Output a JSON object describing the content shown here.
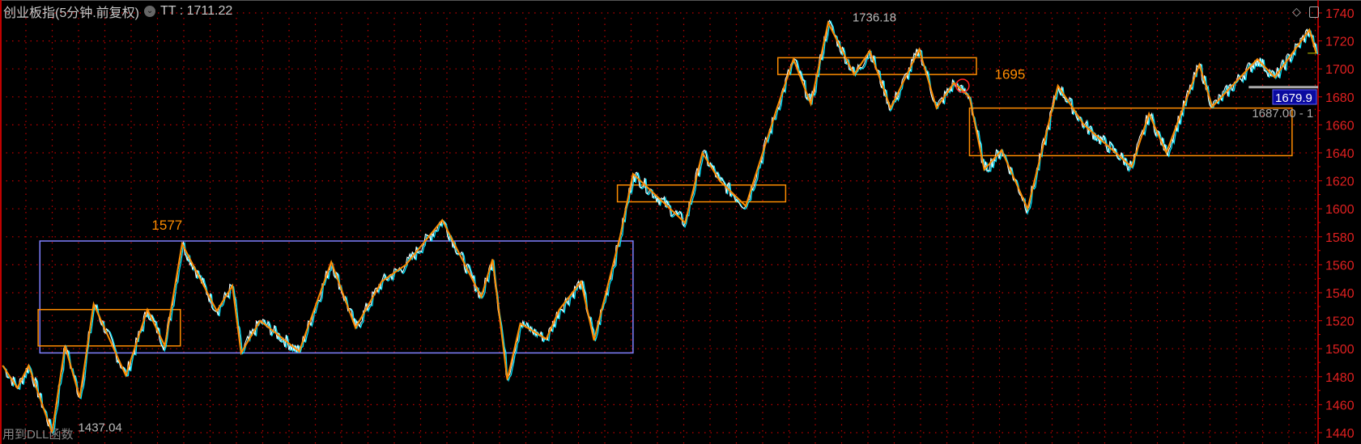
{
  "header": {
    "title": "创业板指(5分钟.前复权)",
    "indicator_label": "TT : 1711.22",
    "dropdown_icon": "chevron-down-circle-icon",
    "toolbar_icons": [
      "diamond-icon",
      "panel-toggle-icon"
    ]
  },
  "footer": {
    "note": "用到DLL函数"
  },
  "colors": {
    "background": "#000000",
    "axis": "#e00000",
    "grid": "#c00000",
    "zigzag": "#ff8c00",
    "price_line": "#ffffff",
    "price_shadow": "#00e5ff",
    "range_box": "#8080ff",
    "current_price_bg": "#0a0aa0"
  },
  "chart_data": {
    "type": "line",
    "title": "",
    "xlabel": "",
    "ylabel": "",
    "ylim": [
      1440,
      1740
    ],
    "xlim": [
      0,
      1520
    ],
    "grid": true,
    "y_ticks": [
      1440,
      1460,
      1480,
      1500,
      1520,
      1540,
      1560,
      1580,
      1600,
      1620,
      1640,
      1660,
      1680,
      1700,
      1720,
      1740
    ],
    "zigzag": {
      "x": [
        3,
        20,
        33,
        60,
        75,
        92,
        108,
        145,
        170,
        190,
        210,
        250,
        268,
        278,
        300,
        345,
        382,
        410,
        440,
        468,
        510,
        555,
        568,
        585,
        600,
        630,
        645,
        670,
        685,
        715,
        730,
        790,
        810,
        830,
        860,
        895,
        915,
        935,
        955,
        985,
        1003,
        1027,
        1060,
        1080,
        1100,
        1118,
        1135,
        1155,
        1185,
        1220,
        1250,
        1305,
        1325,
        1345,
        1383,
        1398,
        1450,
        1470,
        1510,
        1518
      ],
      "y": [
        1488,
        1472,
        1488,
        1440,
        1502,
        1465,
        1532,
        1481,
        1528,
        1502,
        1575,
        1527,
        1545,
        1497,
        1520,
        1498,
        1562,
        1515,
        1548,
        1560,
        1592,
        1537,
        1564,
        1478,
        1518,
        1507,
        1528,
        1548,
        1506,
        1580,
        1625,
        1590,
        1640,
        1620,
        1602,
        1670,
        1707,
        1675,
        1733,
        1696,
        1713,
        1672,
        1714,
        1672,
        1690,
        1680,
        1628,
        1642,
        1600,
        1688,
        1660,
        1630,
        1668,
        1640,
        1703,
        1673,
        1707,
        1694,
        1728,
        1711
      ]
    },
    "boxes": [
      {
        "x": [
          46,
          730
        ],
        "y": [
          1497,
          1577
        ],
        "color": "#8080ff"
      },
      {
        "x": [
          44,
          208
        ],
        "y": [
          1502,
          1528
        ],
        "color": "#ff8c00"
      },
      {
        "x": [
          712,
          906
        ],
        "y": [
          1605,
          1617
        ],
        "color": "#ff8c00"
      },
      {
        "x": [
          897,
          1126
        ],
        "y": [
          1696,
          1708
        ],
        "color": "#ff8c00"
      },
      {
        "x": [
          1118,
          1490
        ],
        "y": [
          1638,
          1672
        ],
        "color": "#ff8c00"
      }
    ],
    "annotations": [
      {
        "text": "1577",
        "x": 175,
        "y": 1585,
        "color": "#ff8c00"
      },
      {
        "text": "1695",
        "x": 1147,
        "y": 1693,
        "color": "#ff8c00"
      },
      {
        "text": "1736.18",
        "x": 983,
        "y": 1734,
        "color": "#bbbbbb"
      },
      {
        "text": "1437.04",
        "x": 78,
        "y": 1441,
        "color": "#bbbbbb"
      }
    ],
    "marker": {
      "x": 1110,
      "y": 1688,
      "shape": "circle",
      "color": "#ff2020"
    },
    "price_range_label": {
      "text": "1687.00 - 1",
      "x_start": 1440,
      "y": 1687
    },
    "current_price": {
      "text": "1679.9",
      "value": 1679.9
    },
    "last_value": 1711.22
  }
}
